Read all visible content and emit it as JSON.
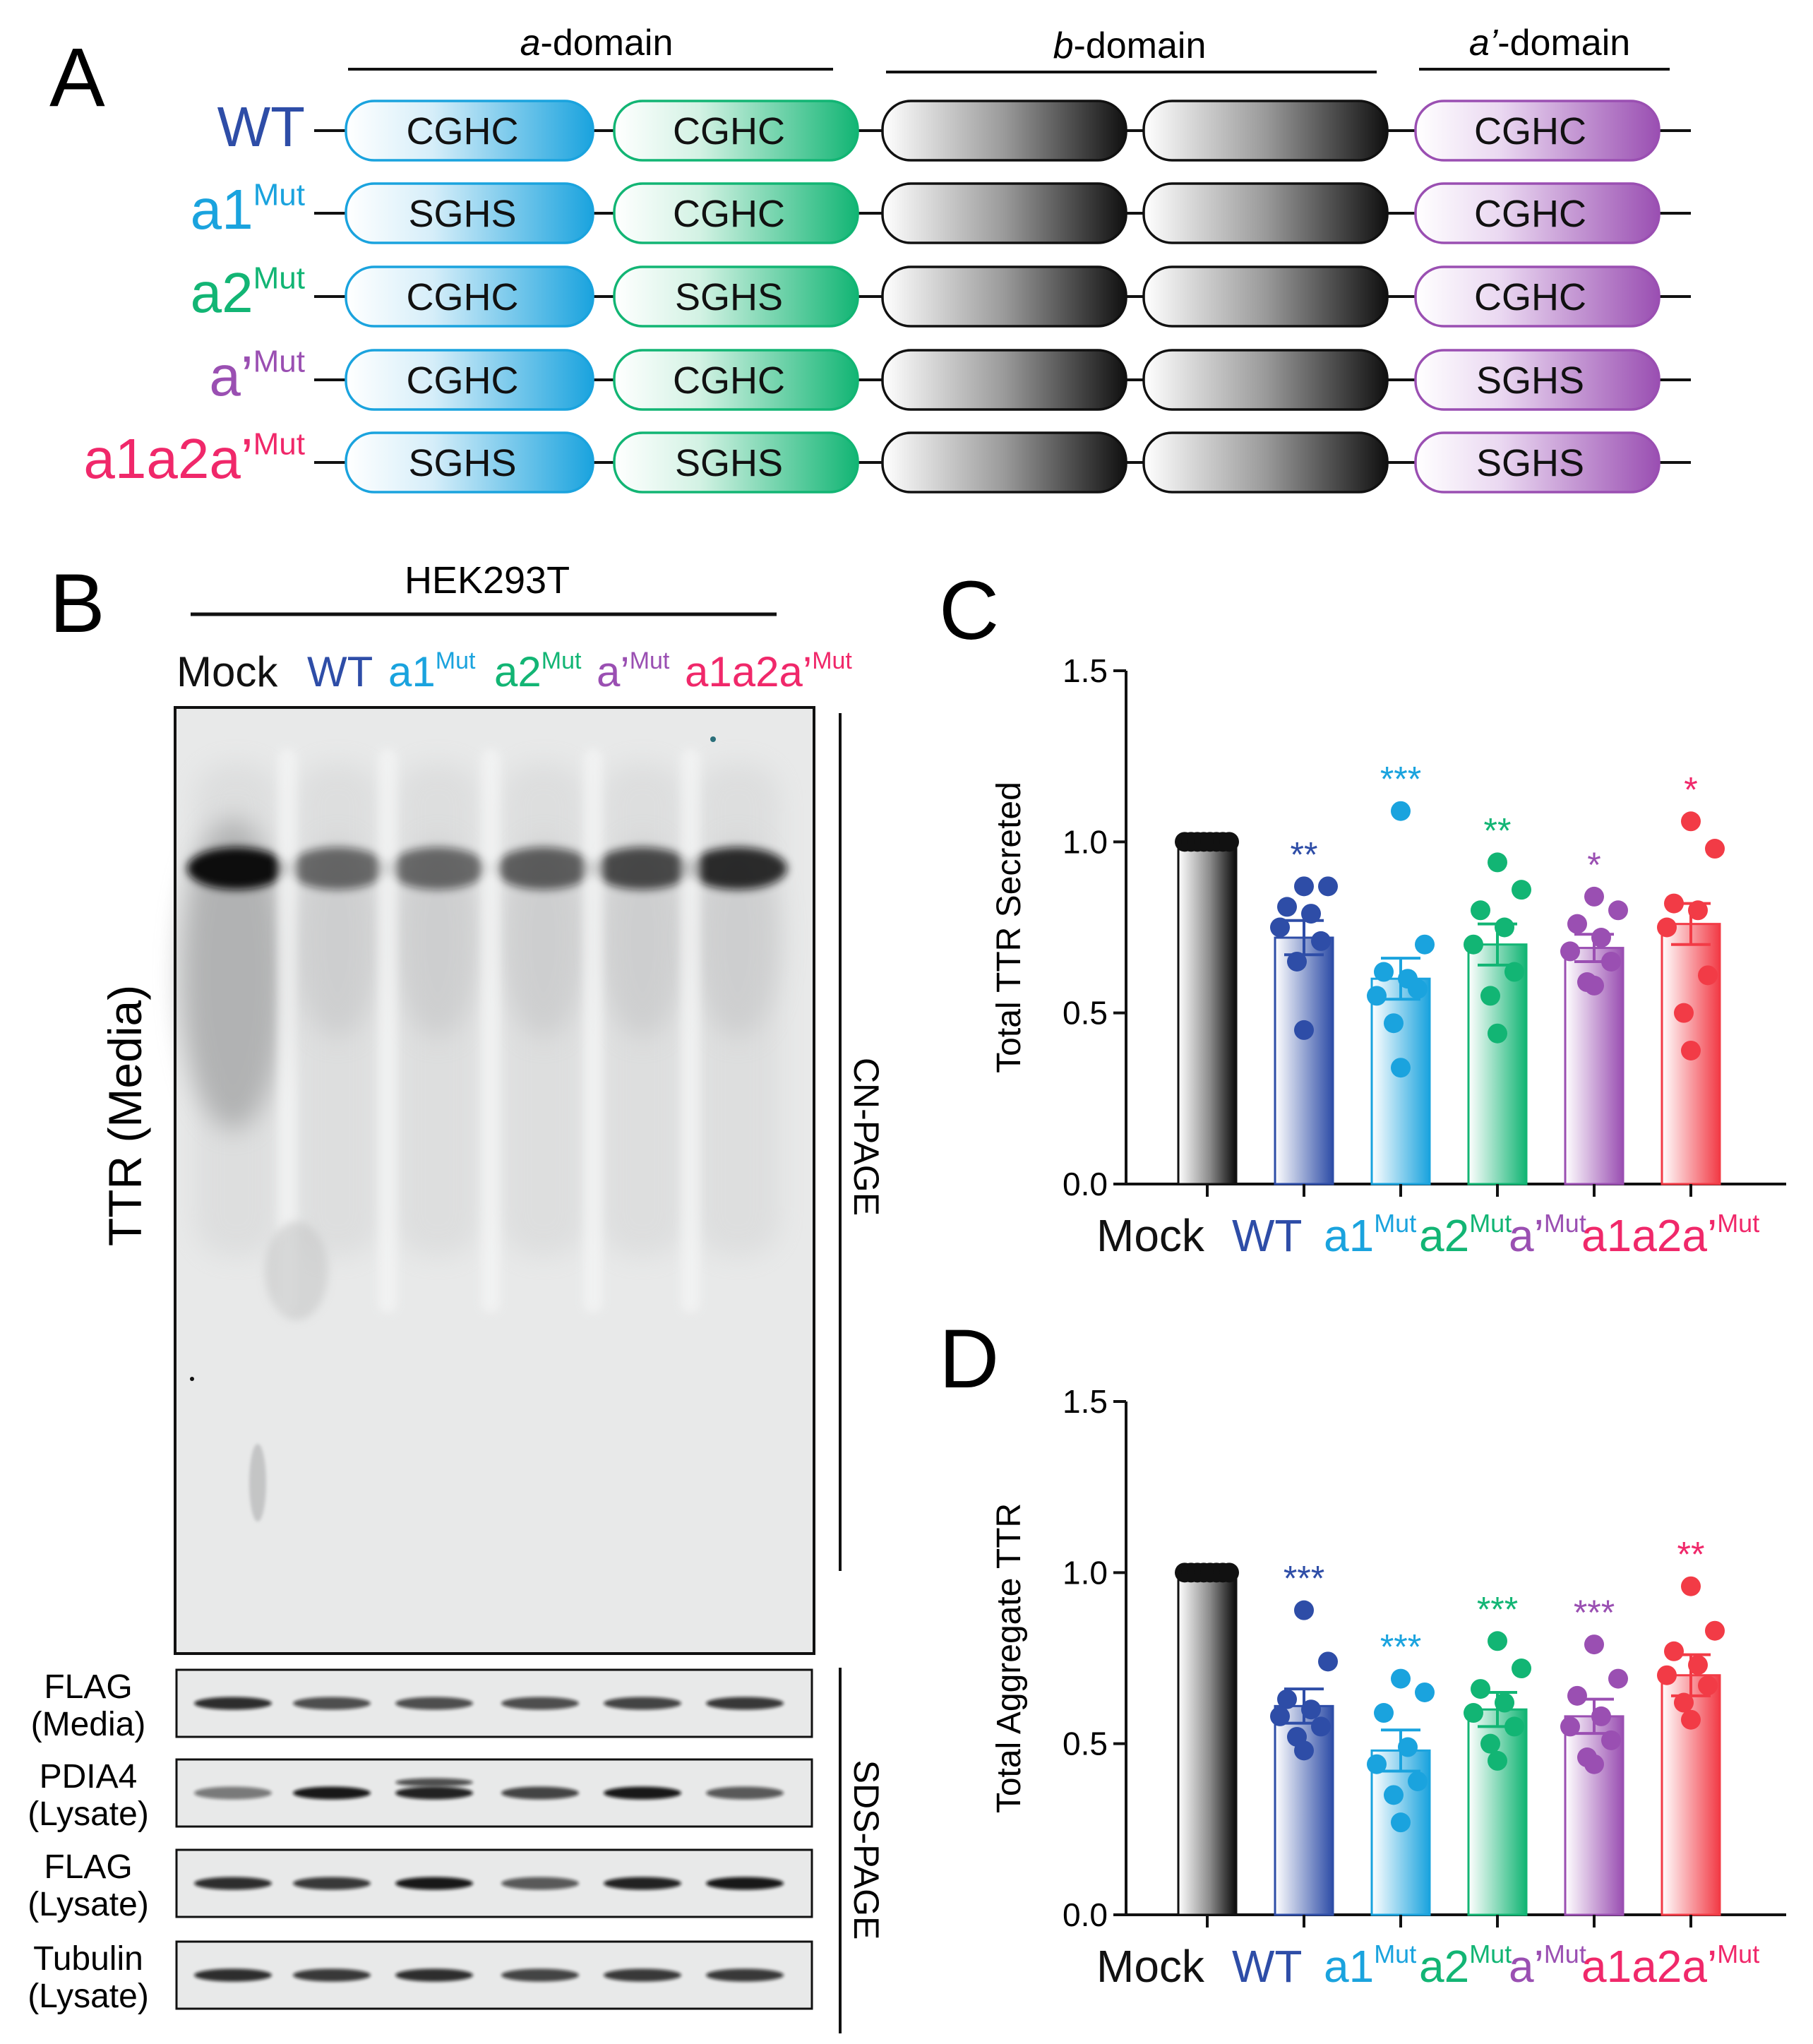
{
  "colors": {
    "black": "#111111",
    "wt": "#2E4DA7",
    "a1": "#1AA3DE",
    "a2": "#12B574",
    "ap": "#9A4FB2",
    "a1a2ap": "#F0286A",
    "a1a2ap_bar": "#F23B46",
    "gel_bg": "#E9EAEA"
  },
  "panels": {
    "A": {
      "letter": "A"
    },
    "B": {
      "letter": "B"
    },
    "C": {
      "letter": "C"
    },
    "D": {
      "letter": "D"
    }
  },
  "domains": {
    "a": {
      "italic": "a",
      "rest": "-domain"
    },
    "b": {
      "italic": "b",
      "rest": "-domain"
    },
    "ap": {
      "italic": "a’",
      "rest": "-domain"
    }
  },
  "constructs": [
    {
      "base": "WT",
      "sup": "",
      "color_key": "wt",
      "motifs": [
        "CGHC",
        "CGHC",
        "CGHC"
      ]
    },
    {
      "base": "a1",
      "sup": "Mut",
      "color_key": "a1",
      "motifs": [
        "SGHS",
        "CGHC",
        "CGHC"
      ]
    },
    {
      "base": "a2",
      "sup": "Mut",
      "color_key": "a2",
      "motifs": [
        "CGHC",
        "SGHS",
        "CGHC"
      ]
    },
    {
      "base": "a’",
      "sup": "Mut",
      "color_key": "ap",
      "motifs": [
        "CGHC",
        "CGHC",
        "SGHS"
      ]
    },
    {
      "base": "a1a2a’",
      "sup": "Mut",
      "color_key": "a1a2ap",
      "motifs": [
        "SGHS",
        "SGHS",
        "SGHS"
      ]
    }
  ],
  "lanes": [
    {
      "base": "Mock",
      "sup": "",
      "color_key": "black"
    },
    {
      "base": "WT",
      "sup": "",
      "color_key": "wt"
    },
    {
      "base": "a1",
      "sup": "Mut",
      "color_key": "a1"
    },
    {
      "base": "a2",
      "sup": "Mut",
      "color_key": "a2"
    },
    {
      "base": "a’",
      "sup": "Mut",
      "color_key": "ap"
    },
    {
      "base": "a1a2a’",
      "sup": "Mut",
      "color_key": "a1a2ap"
    }
  ],
  "blot": {
    "cell_line": "HEK293T",
    "main_label": "TTR (Media)",
    "cn_label": "CN-PAGE",
    "sds_label": "SDS-PAGE",
    "strips": [
      {
        "l1": "FLAG",
        "l2": "(Media)",
        "intensity": [
          0.85,
          0.7,
          0.7,
          0.7,
          0.75,
          0.8
        ]
      },
      {
        "l1": "PDIA4",
        "l2": "(Lysate)",
        "intensity": [
          0.5,
          0.95,
          0.9,
          0.75,
          0.95,
          0.65
        ]
      },
      {
        "l1": "FLAG",
        "l2": "(Lysate)",
        "intensity": [
          0.85,
          0.8,
          0.95,
          0.65,
          0.9,
          0.95
        ]
      },
      {
        "l1": "Tubulin",
        "l2": "(Lysate)",
        "intensity": [
          0.85,
          0.8,
          0.85,
          0.75,
          0.8,
          0.8
        ]
      }
    ]
  },
  "chart_data": [
    {
      "type": "bar",
      "panel": "C",
      "ylabel": "Total TTR Secreted",
      "ylim": [
        0,
        1.5
      ],
      "yticks": [
        "0.0",
        "0.5",
        "1.0",
        "1.5"
      ],
      "categories": [
        "Mock",
        "WT",
        "a1Mut",
        "a2Mut",
        "a’Mut",
        "a1a2a’Mut"
      ],
      "means": [
        1.0,
        0.72,
        0.6,
        0.7,
        0.69,
        0.76
      ],
      "sem": [
        0.0,
        0.05,
        0.06,
        0.06,
        0.04,
        0.06
      ],
      "significance": [
        "",
        "**",
        "***",
        "**",
        "*",
        "*"
      ],
      "points": [
        [
          1,
          1,
          1,
          1,
          1,
          1,
          1,
          1
        ],
        [
          0.87,
          0.87,
          0.81,
          0.79,
          0.75,
          0.71,
          0.65,
          0.45
        ],
        [
          1.09,
          0.7,
          0.62,
          0.6,
          0.55,
          0.57,
          0.47,
          0.34
        ],
        [
          0.94,
          0.86,
          0.8,
          0.75,
          0.7,
          0.62,
          0.55,
          0.44
        ],
        [
          0.84,
          0.8,
          0.76,
          0.72,
          0.68,
          0.65,
          0.59,
          0.58
        ],
        [
          1.06,
          0.98,
          0.82,
          0.8,
          0.75,
          0.61,
          0.5,
          0.39
        ]
      ]
    },
    {
      "type": "bar",
      "panel": "D",
      "ylabel": "Total Aggregate TTR",
      "ylim": [
        0,
        1.5
      ],
      "yticks": [
        "0.0",
        "0.5",
        "1.0",
        "1.5"
      ],
      "categories": [
        "Mock",
        "WT",
        "a1Mut",
        "a2Mut",
        "a’Mut",
        "a1a2a’Mut"
      ],
      "means": [
        1.0,
        0.61,
        0.48,
        0.6,
        0.58,
        0.7
      ],
      "sem": [
        0.0,
        0.05,
        0.06,
        0.05,
        0.05,
        0.06
      ],
      "significance": [
        "",
        "***",
        "***",
        "***",
        "***",
        "**"
      ],
      "points": [
        [
          1,
          1,
          1,
          1,
          1,
          1,
          1,
          1
        ],
        [
          0.89,
          0.74,
          0.63,
          0.6,
          0.58,
          0.55,
          0.52,
          0.48
        ],
        [
          0.69,
          0.65,
          0.59,
          0.49,
          0.44,
          0.39,
          0.35,
          0.27
        ],
        [
          0.8,
          0.72,
          0.66,
          0.62,
          0.59,
          0.55,
          0.5,
          0.45
        ],
        [
          0.79,
          0.69,
          0.64,
          0.58,
          0.55,
          0.51,
          0.46,
          0.44
        ],
        [
          0.96,
          0.83,
          0.77,
          0.73,
          0.7,
          0.67,
          0.62,
          0.57
        ]
      ]
    }
  ]
}
